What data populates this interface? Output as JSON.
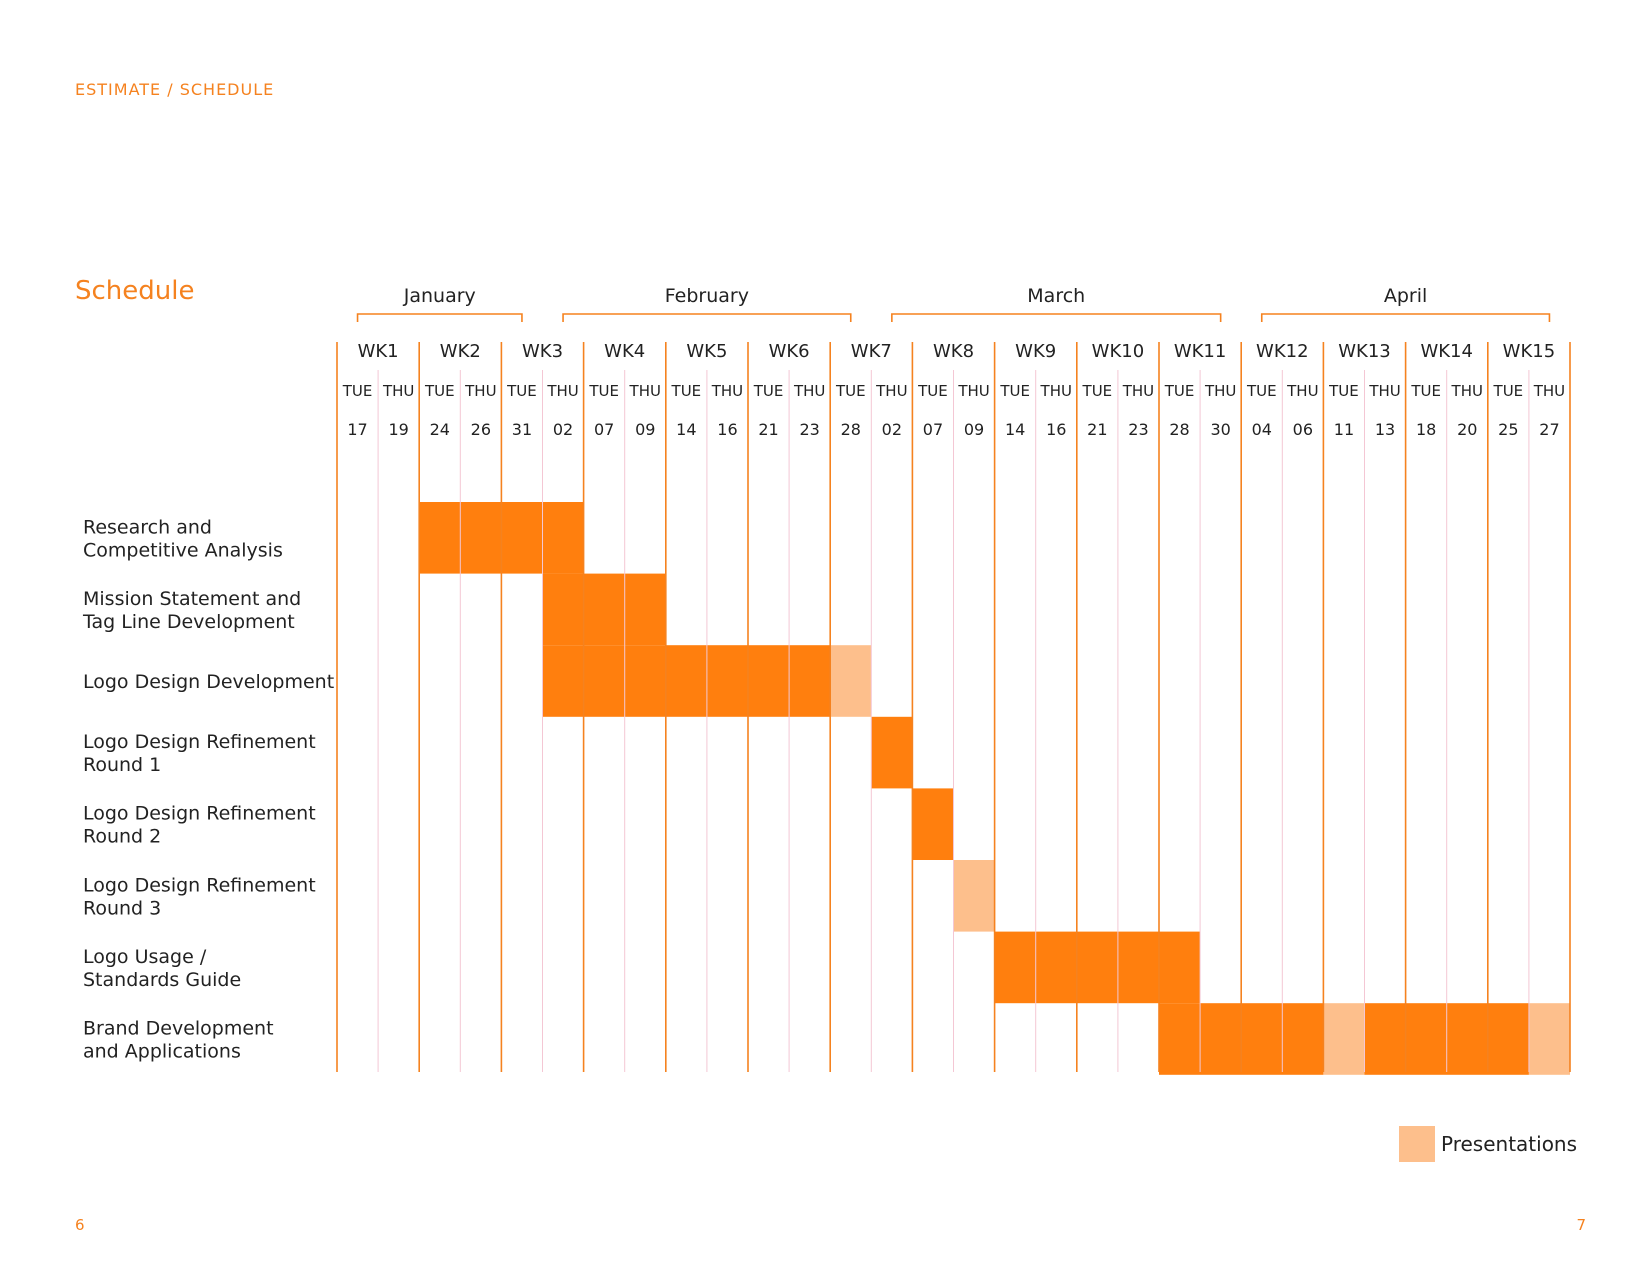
{
  "header": {
    "breadcrumb": "ESTIMATE / SCHEDULE"
  },
  "section_title": "Schedule",
  "pages": {
    "left": "6",
    "right": "7"
  },
  "legend": {
    "label": "Presentations"
  },
  "colors": {
    "accent": "#f5821f",
    "bar": "#ff7f0e",
    "presentation": "#fdbf8c",
    "minor_grid": "#f4c7d4"
  },
  "chart_data": {
    "type": "gantt",
    "title": "Schedule",
    "months": [
      {
        "name": "January",
        "start": 0.5,
        "end": 4.5
      },
      {
        "name": "February",
        "start": 5.5,
        "end": 12.5
      },
      {
        "name": "March",
        "start": 13.5,
        "end": 21.5
      },
      {
        "name": "April",
        "start": 22.5,
        "end": 29.5
      }
    ],
    "weeks": [
      "WK1",
      "WK2",
      "WK3",
      "WK4",
      "WK5",
      "WK6",
      "WK7",
      "WK8",
      "WK9",
      "WK10",
      "WK11",
      "WK12",
      "WK13",
      "WK14",
      "WK15"
    ],
    "days": [
      {
        "dow": "TUE",
        "date": "17"
      },
      {
        "dow": "THU",
        "date": "19"
      },
      {
        "dow": "TUE",
        "date": "24"
      },
      {
        "dow": "THU",
        "date": "26"
      },
      {
        "dow": "TUE",
        "date": "31"
      },
      {
        "dow": "THU",
        "date": "02"
      },
      {
        "dow": "TUE",
        "date": "07"
      },
      {
        "dow": "THU",
        "date": "09"
      },
      {
        "dow": "TUE",
        "date": "14"
      },
      {
        "dow": "THU",
        "date": "16"
      },
      {
        "dow": "TUE",
        "date": "21"
      },
      {
        "dow": "THU",
        "date": "23"
      },
      {
        "dow": "TUE",
        "date": "28"
      },
      {
        "dow": "THU",
        "date": "02"
      },
      {
        "dow": "TUE",
        "date": "07"
      },
      {
        "dow": "THU",
        "date": "09"
      },
      {
        "dow": "TUE",
        "date": "14"
      },
      {
        "dow": "THU",
        "date": "16"
      },
      {
        "dow": "TUE",
        "date": "21"
      },
      {
        "dow": "THU",
        "date": "23"
      },
      {
        "dow": "TUE",
        "date": "28"
      },
      {
        "dow": "THU",
        "date": "30"
      },
      {
        "dow": "TUE",
        "date": "04"
      },
      {
        "dow": "THU",
        "date": "06"
      },
      {
        "dow": "TUE",
        "date": "11"
      },
      {
        "dow": "THU",
        "date": "13"
      },
      {
        "dow": "TUE",
        "date": "18"
      },
      {
        "dow": "THU",
        "date": "20"
      },
      {
        "dow": "TUE",
        "date": "25"
      },
      {
        "dow": "THU",
        "date": "27"
      }
    ],
    "tasks": [
      {
        "lines": [
          "Research and",
          "Competitive Analysis"
        ],
        "work": [
          [
            2,
            5
          ]
        ],
        "presentations": []
      },
      {
        "lines": [
          "Mission Statement and",
          "Tag Line Development"
        ],
        "work": [
          [
            5,
            7
          ]
        ],
        "presentations": []
      },
      {
        "lines": [
          "Logo Design Development"
        ],
        "work": [
          [
            5,
            11
          ]
        ],
        "presentations": [
          12
        ]
      },
      {
        "lines": [
          "Logo Design Refinement",
          "Round 1"
        ],
        "work": [
          [
            13,
            13
          ]
        ],
        "presentations": []
      },
      {
        "lines": [
          "Logo Design Refinement",
          "Round 2"
        ],
        "work": [
          [
            14,
            14
          ]
        ],
        "presentations": []
      },
      {
        "lines": [
          "Logo Design Refinement",
          "Round 3"
        ],
        "work": [],
        "presentations": [
          15
        ]
      },
      {
        "lines": [
          "Logo Usage /",
          "Standards Guide"
        ],
        "work": [
          [
            16,
            20
          ]
        ],
        "presentations": []
      },
      {
        "lines": [
          "Brand Development",
          "and Applications"
        ],
        "work": [
          [
            20,
            23
          ],
          [
            25,
            28
          ]
        ],
        "presentations": [
          24,
          29
        ]
      }
    ]
  }
}
